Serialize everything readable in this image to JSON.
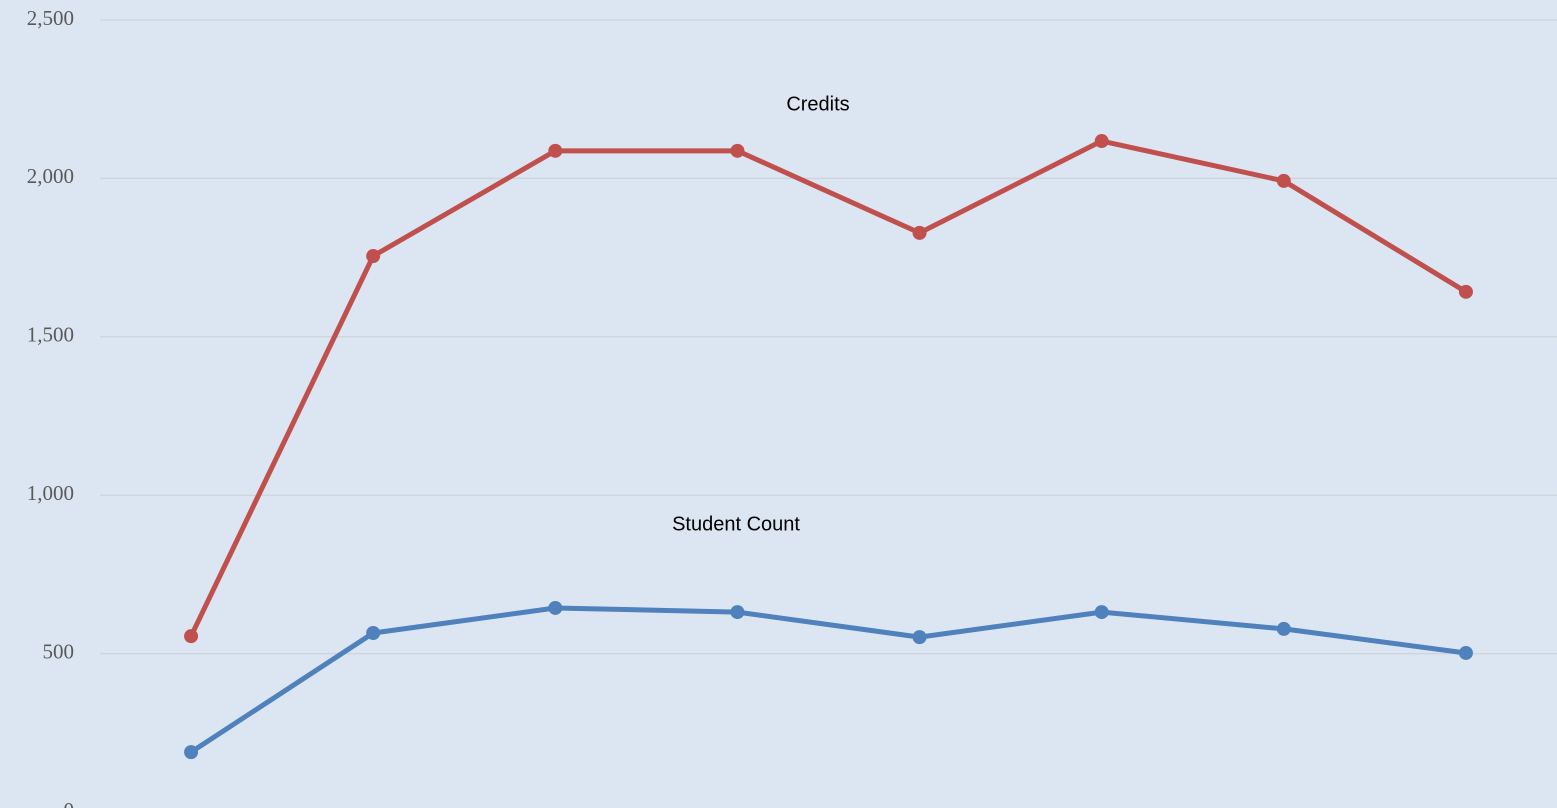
{
  "chart_data": {
    "type": "line",
    "categories": [
      null,
      null,
      null,
      null,
      null,
      null,
      null,
      null
    ],
    "series": [
      {
        "name": "Credits",
        "color": "#c0504d",
        "values": [
          555,
          1755,
          2087,
          2087,
          1828,
          2118,
          1992,
          1642
        ]
      },
      {
        "name": "Student Count",
        "color": "#4f81bd",
        "values": [
          189,
          565,
          644,
          631,
          552,
          631,
          578,
          502
        ]
      }
    ],
    "ylim": [
      0,
      2500
    ],
    "yticks": [
      0,
      500,
      {
        "value": 1000,
        "label": "1,000"
      },
      {
        "value": 1500,
        "label": "1,500"
      },
      {
        "value": 2000,
        "label": "2,000"
      },
      {
        "value": 2500,
        "label": "2,500"
      }
    ],
    "grid": true
  }
}
